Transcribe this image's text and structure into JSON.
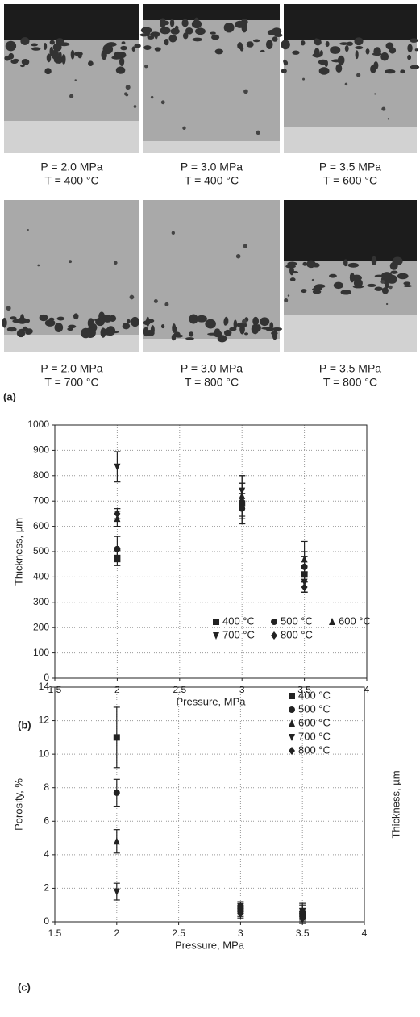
{
  "micrographs": [
    {
      "pressure": "P = 2.0 MPa",
      "temperature": "T = 400 °C"
    },
    {
      "pressure": "P = 3.0 MPa",
      "temperature": "T = 400 °C"
    },
    {
      "pressure": "P = 3.5 MPa",
      "temperature": "T = 600 °C"
    },
    {
      "pressure": "P = 2.0 MPa",
      "temperature": "T = 700 °C"
    },
    {
      "pressure": "P = 3.0 MPa",
      "temperature": "T = 800 °C"
    },
    {
      "pressure": "P = 3.5 MPa",
      "temperature": "T = 800 °C"
    }
  ],
  "panel_labels": [
    "(a)",
    "(b)",
    "(c)"
  ],
  "chart_data": [
    {
      "type": "scatter",
      "x_label": "Pressure, MPa",
      "y_label": "Thickness, µm",
      "x": [
        2.0,
        3.0,
        3.5
      ],
      "series": [
        {
          "name": "400 °C",
          "marker": "square",
          "color": "#222",
          "values": [
            475,
            690,
            410
          ],
          "errors": [
            30,
            80,
            70
          ]
        },
        {
          "name": "500 °C",
          "marker": "circle",
          "color": "#222",
          "values": [
            510,
            670,
            440
          ],
          "errors": [
            50,
            60,
            60
          ]
        },
        {
          "name": "600 °C",
          "marker": "triangle-up",
          "color": "#222",
          "values": [
            630,
            720,
            470
          ],
          "errors": [
            30,
            80,
            70
          ]
        },
        {
          "name": "700 °C",
          "marker": "triangle-down",
          "color": "#222",
          "values": [
            835,
            740,
            380
          ],
          "errors": [
            60,
            60,
            40
          ]
        },
        {
          "name": "800 °C",
          "marker": "diamond",
          "color": "#222",
          "values": [
            650,
            700,
            360
          ],
          "errors": [
            20,
            70,
            20
          ]
        }
      ],
      "xlim": [
        1.5,
        4.0
      ],
      "xticks": [
        1.5,
        2.0,
        2.5,
        3.0,
        3.5,
        4.0
      ],
      "ylim": [
        0,
        1000
      ],
      "yticks": [
        0,
        100,
        200,
        300,
        400,
        500,
        600,
        700,
        800,
        900,
        1000
      ],
      "grid": true,
      "legend": "lower-right"
    },
    {
      "type": "scatter",
      "x_label": "Pressure, MPa",
      "y_label": "Porosity, %",
      "right_label": "Thickness, µm",
      "x": [
        2.0,
        3.0,
        3.5
      ],
      "series": [
        {
          "name": "400 °C",
          "marker": "square",
          "color": "#222",
          "values": [
            11,
            0.8,
            0.5
          ],
          "errors": [
            1.8,
            0.3,
            0.5
          ]
        },
        {
          "name": "500 °C",
          "marker": "circle",
          "color": "#222",
          "values": [
            7.7,
            0.6,
            0.3
          ],
          "errors": [
            0.8,
            0.3,
            0.3
          ]
        },
        {
          "name": "600 °C",
          "marker": "triangle-up",
          "color": "#222",
          "values": [
            4.8,
            0.7,
            0.4
          ],
          "errors": [
            0.7,
            0.3,
            0.4
          ]
        },
        {
          "name": "700 °C",
          "marker": "triangle-down",
          "color": "#222",
          "values": [
            1.8,
            0.9,
            0.6
          ],
          "errors": [
            0.5,
            0.3,
            0.5
          ]
        },
        {
          "name": "800 °C",
          "marker": "diamond",
          "color": "#222",
          "values": [
            null,
            0.5,
            0.2
          ],
          "errors": [
            null,
            0.3,
            0.3
          ]
        }
      ],
      "xlim": [
        1.5,
        4.0
      ],
      "xticks": [
        1.5,
        2.0,
        2.5,
        3.0,
        3.5,
        4.0
      ],
      "ylim": [
        0,
        14
      ],
      "yticks": [
        0,
        2,
        4,
        6,
        8,
        10,
        12,
        14
      ],
      "grid": true,
      "legend": "upper-right"
    }
  ]
}
